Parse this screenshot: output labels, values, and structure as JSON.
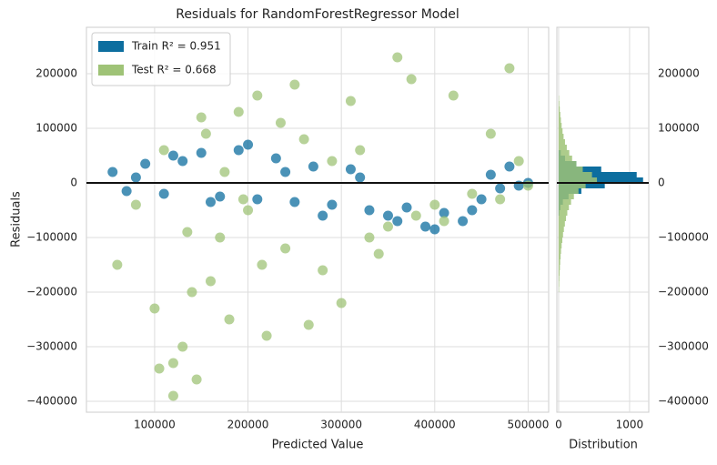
{
  "chart_data": [
    {
      "type": "scatter",
      "title": "Residuals for RandomForestRegressor Model",
      "xlabel": "Predicted Value",
      "ylabel": "Residuals",
      "xlim": [
        27000,
        522000
      ],
      "ylim": [
        -420000,
        285000
      ],
      "xticks": [
        100000,
        200000,
        300000,
        400000,
        500000
      ],
      "yticks": [
        {
          "value": -400000,
          "label": "−400000"
        },
        {
          "value": -300000,
          "label": "−300000"
        },
        {
          "value": -200000,
          "label": "−200000"
        },
        {
          "value": -100000,
          "label": "−100000"
        },
        0,
        100000,
        200000
      ],
      "grid": true,
      "legend": "upper left",
      "hline": 0,
      "series": [
        {
          "name": "Train R² = 0.951",
          "color": "#0d6e9f",
          "x": [
            55000,
            70000,
            90000,
            110000,
            130000,
            150000,
            170000,
            190000,
            210000,
            230000,
            250000,
            270000,
            290000,
            310000,
            330000,
            350000,
            370000,
            390000,
            410000,
            430000,
            450000,
            470000,
            490000,
            500000,
            80000,
            120000,
            160000,
            200000,
            240000,
            280000,
            320000,
            360000,
            400000,
            440000,
            460000,
            480000
          ],
          "values": [
            20000,
            -15000,
            35000,
            -20000,
            40000,
            55000,
            -25000,
            60000,
            -30000,
            45000,
            -35000,
            30000,
            -40000,
            25000,
            -50000,
            -60000,
            -45000,
            -80000,
            -55000,
            -70000,
            -30000,
            -10000,
            -5000,
            0,
            10000,
            50000,
            -35000,
            70000,
            20000,
            -60000,
            10000,
            -70000,
            -85000,
            -50000,
            15000,
            30000
          ]
        },
        {
          "name": "Test R² = 0.668",
          "color": "#9fc377",
          "x": [
            60000,
            80000,
            100000,
            105000,
            120000,
            130000,
            140000,
            150000,
            160000,
            170000,
            180000,
            190000,
            200000,
            210000,
            220000,
            240000,
            250000,
            260000,
            280000,
            300000,
            320000,
            340000,
            360000,
            380000,
            400000,
            420000,
            440000,
            460000,
            480000,
            500000,
            110000,
            135000,
            145000,
            155000,
            175000,
            195000,
            215000,
            235000,
            265000,
            290000,
            310000,
            330000,
            350000,
            375000,
            410000,
            470000,
            490000,
            120000
          ],
          "values": [
            -150000,
            -40000,
            -230000,
            -340000,
            -390000,
            -300000,
            -200000,
            120000,
            -180000,
            -100000,
            -250000,
            130000,
            -50000,
            160000,
            -280000,
            -120000,
            180000,
            80000,
            -160000,
            -220000,
            60000,
            -130000,
            230000,
            -60000,
            -40000,
            160000,
            -20000,
            90000,
            210000,
            -5000,
            60000,
            -90000,
            -360000,
            90000,
            20000,
            -30000,
            -150000,
            110000,
            -260000,
            40000,
            150000,
            -100000,
            -80000,
            190000,
            -70000,
            -30000,
            40000,
            -330000
          ]
        }
      ]
    },
    {
      "type": "histogram",
      "xlabel": "Distribution",
      "xlim": [
        -25,
        1270
      ],
      "ylim": [
        -420000,
        285000
      ],
      "xticks": [
        0,
        1000
      ],
      "yticks": [
        {
          "value": -400000,
          "label": "−400000"
        },
        {
          "value": -300000,
          "label": "−300000"
        },
        {
          "value": -200000,
          "label": "−200000"
        },
        {
          "value": -100000,
          "label": "−100000"
        },
        0,
        100000,
        200000
      ],
      "grid": true,
      "hline": 0,
      "series": [
        {
          "color": "#0d6e9f",
          "bins": [
            -60000,
            -50000,
            -40000,
            -30000,
            -20000,
            -10000,
            0,
            10000,
            20000,
            30000,
            40000,
            50000,
            60000
          ],
          "values": [
            10,
            25,
            60,
            140,
            320,
            650,
            1190,
            1100,
            600,
            250,
            90,
            30
          ]
        },
        {
          "color": "#9fc377",
          "bins": [
            -200000,
            -190000,
            -180000,
            -170000,
            -160000,
            -150000,
            -140000,
            -130000,
            -120000,
            -110000,
            -100000,
            -90000,
            -80000,
            -70000,
            -60000,
            -50000,
            -40000,
            -30000,
            -20000,
            -10000,
            0,
            10000,
            20000,
            30000,
            40000,
            50000,
            60000,
            70000,
            80000,
            90000,
            100000,
            110000,
            120000,
            130000,
            140000,
            150000,
            160000
          ],
          "values": [
            5,
            8,
            10,
            14,
            18,
            22,
            28,
            34,
            42,
            52,
            62,
            74,
            88,
            104,
            122,
            145,
            175,
            215,
            280,
            380,
            540,
            470,
            340,
            250,
            190,
            150,
            115,
            90,
            70,
            55,
            42,
            32,
            24,
            16,
            10,
            5
          ]
        }
      ]
    }
  ]
}
